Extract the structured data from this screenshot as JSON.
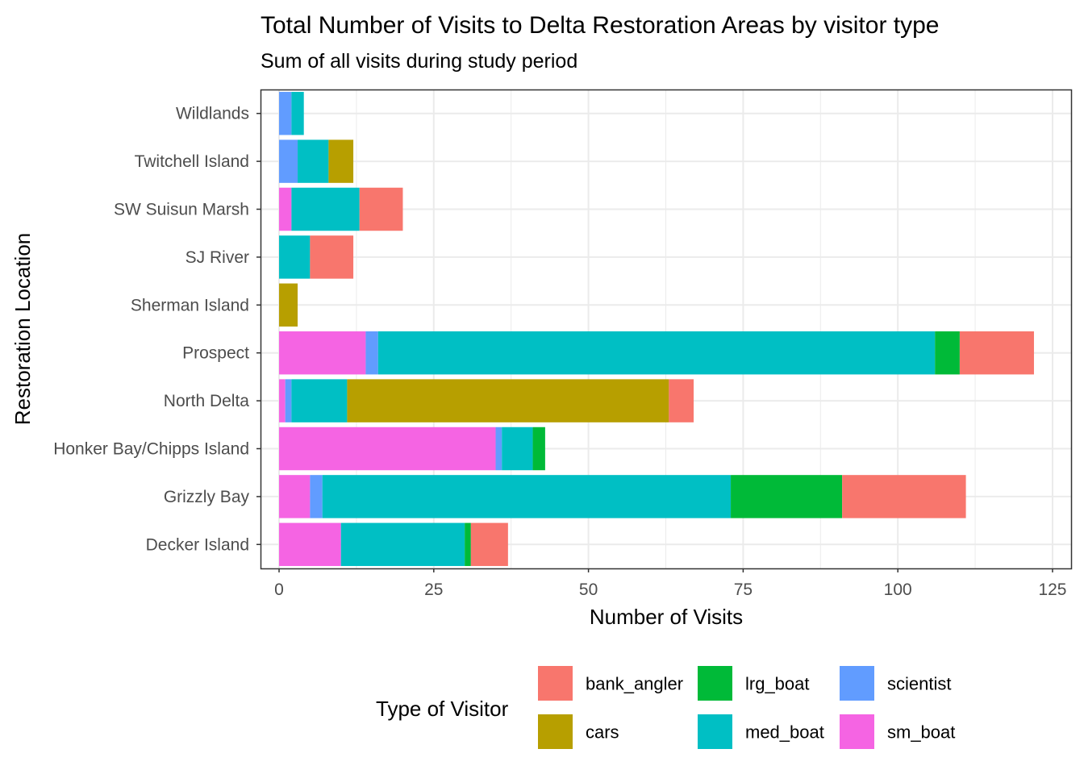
{
  "chart_data": {
    "type": "bar",
    "orientation": "horizontal",
    "stacked": true,
    "title": "Total Number of Visits to Delta Restoration Areas by visitor type",
    "subtitle": "Sum of all visits during study period",
    "xlabel": "Number of Visits",
    "ylabel": "Restoration Location",
    "xlim": [
      -3,
      128
    ],
    "x_ticks": [
      0,
      25,
      50,
      75,
      100,
      125
    ],
    "x_tick_labels": [
      "0",
      "25",
      "50",
      "75",
      "100",
      "125"
    ],
    "grid": true,
    "legend_title": "Type of Visitor",
    "legend_position": "bottom",
    "categories": [
      "Decker Island",
      "Grizzly Bay",
      "Honker Bay/Chipps Island",
      "North Delta",
      "Prospect",
      "Sherman Island",
      "SJ River",
      "SW Suisun Marsh",
      "Twitchell Island",
      "Wildlands"
    ],
    "stack_order": [
      "sm_boat",
      "scientist",
      "med_boat",
      "cars",
      "lrg_boat",
      "bank_angler"
    ],
    "series": [
      {
        "name": "bank_angler",
        "color": "#F8766D",
        "values": [
          6,
          20,
          0,
          4,
          12,
          0,
          7,
          7,
          0,
          0
        ]
      },
      {
        "name": "cars",
        "color": "#B79F00",
        "values": [
          0,
          0,
          0,
          52,
          0,
          3,
          0,
          0,
          4,
          0
        ]
      },
      {
        "name": "lrg_boat",
        "color": "#00BA38",
        "values": [
          1,
          18,
          2,
          0,
          4,
          0,
          0,
          0,
          0,
          0
        ]
      },
      {
        "name": "med_boat",
        "color": "#00BFC4",
        "values": [
          20,
          66,
          5,
          9,
          90,
          0,
          5,
          11,
          5,
          2
        ]
      },
      {
        "name": "scientist",
        "color": "#619CFF",
        "values": [
          0,
          2,
          1,
          1,
          2,
          0,
          0,
          0,
          3,
          2
        ]
      },
      {
        "name": "sm_boat",
        "color": "#F564E3",
        "values": [
          10,
          5,
          35,
          1,
          14,
          0,
          0,
          2,
          0,
          0
        ]
      }
    ]
  }
}
